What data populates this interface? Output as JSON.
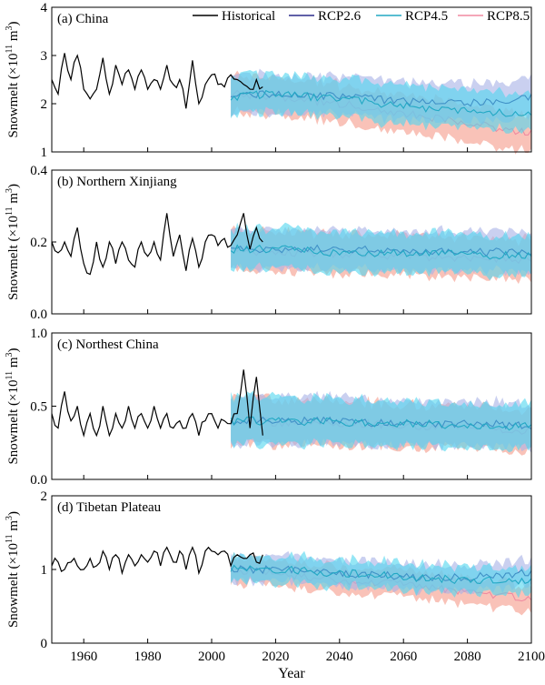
{
  "figure": {
    "xlabel": "Year",
    "xticks": [
      "1960",
      "1980",
      "2000",
      "2020",
      "2040",
      "2060",
      "2080",
      "2100"
    ],
    "legend": [
      {
        "label": "Historical",
        "color": "#000000"
      },
      {
        "label": "RCP2.6",
        "color": "#2b2b8c"
      },
      {
        "label": "RCP4.5",
        "color": "#22a8c4"
      },
      {
        "label": "RCP8.5",
        "color": "#f08aa0"
      }
    ],
    "colors": {
      "historical": "#000000",
      "rcp26_line": "#2b2b8c",
      "rcp26_band": "#a6b0e6",
      "rcp45_line": "#22a8c4",
      "rcp45_band": "#4fd5ee",
      "rcp85_line": "#f08aa0",
      "rcp85_band": "#f7b3a6"
    },
    "ylabel": {
      "main": "Snowmelt (×10",
      "sup1": "11",
      "mid": " m",
      "sup2": "3",
      "end": ")"
    }
  },
  "chart_data": [
    {
      "type": "line",
      "title": "(a) China",
      "xlabel": "Year",
      "ylabel": "Snowmelt (×10^11 m^3)",
      "xlim": [
        1950,
        2100
      ],
      "ylim": [
        1,
        4
      ],
      "yticks": [
        "1",
        "2",
        "3",
        "4"
      ],
      "historical": {
        "x": [
          1950,
          1952,
          1954,
          1956,
          1958,
          1960,
          1962,
          1964,
          1966,
          1968,
          1970,
          1972,
          1974,
          1976,
          1978,
          1980,
          1982,
          1984,
          1986,
          1988,
          1990,
          1992,
          1994,
          1996,
          1998,
          2000,
          2002,
          2004,
          2006,
          2008,
          2010,
          2012,
          2014,
          2016
        ],
        "y": [
          2.5,
          2.2,
          3.05,
          2.5,
          3.0,
          2.3,
          2.1,
          2.3,
          2.95,
          2.2,
          2.8,
          2.4,
          2.7,
          2.3,
          2.7,
          2.3,
          2.5,
          2.3,
          2.8,
          2.4,
          2.5,
          1.9,
          2.9,
          2.0,
          2.4,
          2.6,
          2.4,
          2.35,
          2.6,
          2.5,
          2.4,
          2.3,
          2.5,
          2.35
        ]
      },
      "rcp26": {
        "x": [
          2006,
          2020,
          2040,
          2060,
          2080,
          2100
        ],
        "mean": [
          2.2,
          2.2,
          2.15,
          2.05,
          2.0,
          2.15
        ],
        "lower": [
          1.85,
          1.85,
          1.8,
          1.7,
          1.65,
          1.8
        ],
        "upper": [
          2.6,
          2.55,
          2.5,
          2.4,
          2.35,
          2.5
        ]
      },
      "rcp45": {
        "x": [
          2006,
          2020,
          2040,
          2060,
          2080,
          2100
        ],
        "mean": [
          2.15,
          2.2,
          2.1,
          1.95,
          1.85,
          1.8
        ],
        "lower": [
          1.8,
          1.85,
          1.75,
          1.6,
          1.55,
          1.5
        ],
        "upper": [
          2.55,
          2.55,
          2.45,
          2.35,
          2.25,
          2.2
        ]
      },
      "rcp85": {
        "x": [
          2006,
          2020,
          2040,
          2060,
          2080,
          2100
        ],
        "mean": [
          2.2,
          2.15,
          2.0,
          1.8,
          1.6,
          1.4
        ],
        "lower": [
          1.85,
          1.8,
          1.65,
          1.45,
          1.25,
          1.05
        ],
        "upper": [
          2.55,
          2.5,
          2.35,
          2.15,
          1.95,
          1.75
        ]
      }
    },
    {
      "type": "line",
      "title": "(b) Northern Xinjiang",
      "xlabel": "Year",
      "ylabel": "Snowmelt (×10^11 m^3)",
      "xlim": [
        1950,
        2100
      ],
      "ylim": [
        0,
        0.4
      ],
      "yticks": [
        "0.0",
        "0.2",
        "0.4"
      ],
      "historical": {
        "x": [
          1950,
          1952,
          1954,
          1956,
          1958,
          1960,
          1962,
          1964,
          1966,
          1968,
          1970,
          1972,
          1974,
          1976,
          1978,
          1980,
          1982,
          1984,
          1986,
          1988,
          1990,
          1992,
          1994,
          1996,
          1998,
          2000,
          2002,
          2004,
          2006,
          2008,
          2010,
          2012,
          2014,
          2016
        ],
        "y": [
          0.2,
          0.17,
          0.2,
          0.16,
          0.24,
          0.14,
          0.11,
          0.2,
          0.13,
          0.2,
          0.14,
          0.2,
          0.15,
          0.13,
          0.2,
          0.16,
          0.2,
          0.15,
          0.28,
          0.16,
          0.22,
          0.12,
          0.21,
          0.13,
          0.2,
          0.22,
          0.19,
          0.21,
          0.19,
          0.22,
          0.28,
          0.18,
          0.24,
          0.2
        ]
      },
      "rcp26": {
        "x": [
          2006,
          2020,
          2040,
          2060,
          2080,
          2100
        ],
        "mean": [
          0.18,
          0.18,
          0.18,
          0.175,
          0.17,
          0.175
        ],
        "lower": [
          0.13,
          0.13,
          0.13,
          0.125,
          0.12,
          0.125
        ],
        "upper": [
          0.23,
          0.23,
          0.23,
          0.225,
          0.22,
          0.225
        ]
      },
      "rcp45": {
        "x": [
          2006,
          2020,
          2040,
          2060,
          2080,
          2100
        ],
        "mean": [
          0.18,
          0.18,
          0.17,
          0.17,
          0.165,
          0.16
        ],
        "lower": [
          0.13,
          0.13,
          0.12,
          0.12,
          0.115,
          0.11
        ],
        "upper": [
          0.23,
          0.23,
          0.225,
          0.22,
          0.215,
          0.21
        ]
      },
      "rcp85": {
        "x": [
          2006,
          2020,
          2040,
          2060,
          2080,
          2100
        ],
        "mean": [
          0.18,
          0.17,
          0.165,
          0.16,
          0.155,
          0.15
        ],
        "lower": [
          0.13,
          0.12,
          0.115,
          0.11,
          0.105,
          0.1
        ],
        "upper": [
          0.23,
          0.22,
          0.215,
          0.21,
          0.205,
          0.2
        ]
      }
    },
    {
      "type": "line",
      "title": "(c) Northest China",
      "xlabel": "Year",
      "ylabel": "Snowmelt (×10^11 m^3)",
      "xlim": [
        1950,
        2100
      ],
      "ylim": [
        0,
        1.0
      ],
      "yticks": [
        "0.0",
        "0.5",
        "1.0"
      ],
      "historical": {
        "x": [
          1950,
          1952,
          1954,
          1956,
          1958,
          1960,
          1962,
          1964,
          1966,
          1968,
          1970,
          1972,
          1974,
          1976,
          1978,
          1980,
          1982,
          1984,
          1986,
          1988,
          1990,
          1992,
          1994,
          1996,
          1998,
          2000,
          2002,
          2004,
          2006,
          2008,
          2010,
          2012,
          2014,
          2016
        ],
        "y": [
          0.45,
          0.35,
          0.6,
          0.4,
          0.5,
          0.3,
          0.45,
          0.3,
          0.5,
          0.3,
          0.45,
          0.35,
          0.5,
          0.35,
          0.45,
          0.35,
          0.5,
          0.35,
          0.45,
          0.35,
          0.4,
          0.35,
          0.45,
          0.3,
          0.4,
          0.45,
          0.35,
          0.4,
          0.38,
          0.45,
          0.75,
          0.35,
          0.7,
          0.3
        ]
      },
      "rcp26": {
        "x": [
          2006,
          2020,
          2040,
          2060,
          2080,
          2100
        ],
        "mean": [
          0.4,
          0.4,
          0.4,
          0.38,
          0.38,
          0.37
        ],
        "lower": [
          0.25,
          0.25,
          0.25,
          0.24,
          0.24,
          0.23
        ],
        "upper": [
          0.55,
          0.55,
          0.55,
          0.52,
          0.52,
          0.5
        ]
      },
      "rcp45": {
        "x": [
          2006,
          2020,
          2040,
          2060,
          2080,
          2100
        ],
        "mean": [
          0.4,
          0.4,
          0.39,
          0.38,
          0.37,
          0.36
        ],
        "lower": [
          0.25,
          0.25,
          0.25,
          0.24,
          0.23,
          0.22
        ],
        "upper": [
          0.55,
          0.55,
          0.53,
          0.52,
          0.5,
          0.5
        ]
      },
      "rcp85": {
        "x": [
          2006,
          2020,
          2040,
          2060,
          2080,
          2100
        ],
        "mean": [
          0.4,
          0.39,
          0.38,
          0.37,
          0.35,
          0.33
        ],
        "lower": [
          0.25,
          0.25,
          0.24,
          0.23,
          0.22,
          0.2
        ],
        "upper": [
          0.55,
          0.53,
          0.52,
          0.5,
          0.48,
          0.46
        ]
      }
    },
    {
      "type": "line",
      "title": "(d) Tibetan Plateau",
      "xlabel": "Year",
      "ylabel": "Snowmelt (×10^11 m^3)",
      "xlim": [
        1950,
        2100
      ],
      "ylim": [
        0,
        2
      ],
      "yticks": [
        "0",
        "1",
        "2"
      ],
      "historical": {
        "x": [
          1950,
          1952,
          1954,
          1956,
          1958,
          1960,
          1962,
          1964,
          1966,
          1968,
          1970,
          1972,
          1974,
          1976,
          1978,
          1980,
          1982,
          1984,
          1986,
          1988,
          1990,
          1992,
          1994,
          1996,
          1998,
          2000,
          2002,
          2004,
          2006,
          2008,
          2010,
          2012,
          2014,
          2016
        ],
        "y": [
          1.05,
          1.1,
          1.0,
          1.1,
          1.05,
          1.0,
          1.15,
          1.05,
          1.25,
          1.0,
          1.2,
          0.95,
          1.2,
          1.05,
          1.2,
          1.1,
          1.25,
          1.05,
          1.3,
          1.1,
          1.25,
          1.0,
          1.3,
          0.95,
          1.25,
          1.25,
          1.2,
          1.25,
          1.05,
          1.2,
          1.15,
          1.2,
          1.1,
          1.2
        ]
      },
      "rcp26": {
        "x": [
          2006,
          2020,
          2040,
          2060,
          2080,
          2100
        ],
        "mean": [
          1.0,
          1.0,
          0.95,
          0.9,
          0.9,
          0.95
        ],
        "lower": [
          0.85,
          0.85,
          0.8,
          0.75,
          0.75,
          0.8
        ],
        "upper": [
          1.15,
          1.15,
          1.1,
          1.05,
          1.05,
          1.1
        ]
      },
      "rcp45": {
        "x": [
          2006,
          2020,
          2040,
          2060,
          2080,
          2100
        ],
        "mean": [
          1.0,
          1.0,
          0.95,
          0.9,
          0.85,
          0.85
        ],
        "lower": [
          0.85,
          0.85,
          0.8,
          0.75,
          0.7,
          0.7
        ],
        "upper": [
          1.15,
          1.15,
          1.1,
          1.05,
          1.0,
          1.0
        ]
      },
      "rcp85": {
        "x": [
          2006,
          2020,
          2040,
          2060,
          2080,
          2100
        ],
        "mean": [
          1.0,
          0.95,
          0.85,
          0.8,
          0.7,
          0.6
        ],
        "lower": [
          0.85,
          0.8,
          0.7,
          0.65,
          0.55,
          0.45
        ],
        "upper": [
          1.15,
          1.1,
          1.0,
          0.95,
          0.85,
          0.75
        ]
      }
    }
  ]
}
